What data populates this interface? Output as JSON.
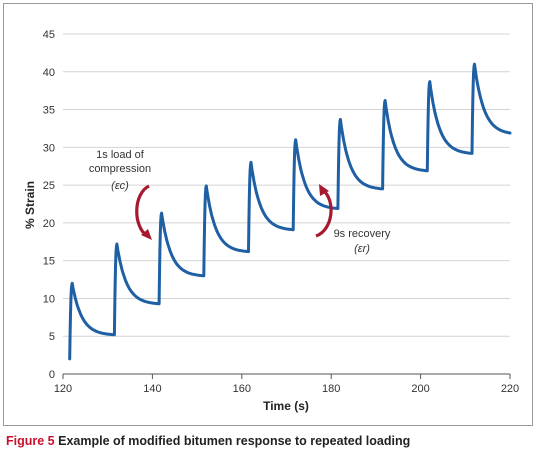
{
  "chart_data": {
    "type": "line",
    "xlabel": "Time (s)",
    "ylabel": "% Strain",
    "xlim": [
      120,
      220
    ],
    "ylim": [
      0,
      45
    ],
    "xticks": [
      120,
      140,
      160,
      180,
      200,
      220
    ],
    "yticks": [
      0,
      5,
      10,
      15,
      20,
      25,
      30,
      35,
      40,
      45
    ],
    "grid": "horizontal",
    "line_color": "#1f5fa3",
    "annotation_color": "#a6192e",
    "cycles": [
      {
        "load_start": 121.5,
        "start": 2.0,
        "peak": 12.0,
        "end": 5.2
      },
      {
        "load_start": 131.5,
        "start": 5.2,
        "peak": 17.2,
        "end": 9.3
      },
      {
        "load_start": 141.5,
        "start": 9.3,
        "peak": 21.3,
        "end": 13.0
      },
      {
        "load_start": 151.5,
        "start": 13.0,
        "peak": 24.9,
        "end": 16.2
      },
      {
        "load_start": 161.5,
        "start": 16.2,
        "peak": 28.0,
        "end": 19.1
      },
      {
        "load_start": 171.5,
        "start": 19.1,
        "peak": 31.0,
        "end": 21.9
      },
      {
        "load_start": 181.5,
        "start": 21.9,
        "peak": 33.7,
        "end": 24.5
      },
      {
        "load_start": 191.5,
        "start": 24.5,
        "peak": 36.2,
        "end": 26.9
      },
      {
        "load_start": 201.5,
        "start": 26.9,
        "peak": 38.7,
        "end": 29.2
      },
      {
        "load_start": 211.5,
        "start": 29.2,
        "peak": 41.0,
        "end": 31.9
      }
    ],
    "annotations": {
      "load": {
        "line1": "1s load of",
        "line2": "compression",
        "symbol": "(εc)"
      },
      "recovery": {
        "line1": "9s recovery",
        "symbol": "(εr)"
      }
    }
  },
  "caption": {
    "label": "Figure 5",
    "text": "Example of modified bitumen response to repeated loading"
  }
}
